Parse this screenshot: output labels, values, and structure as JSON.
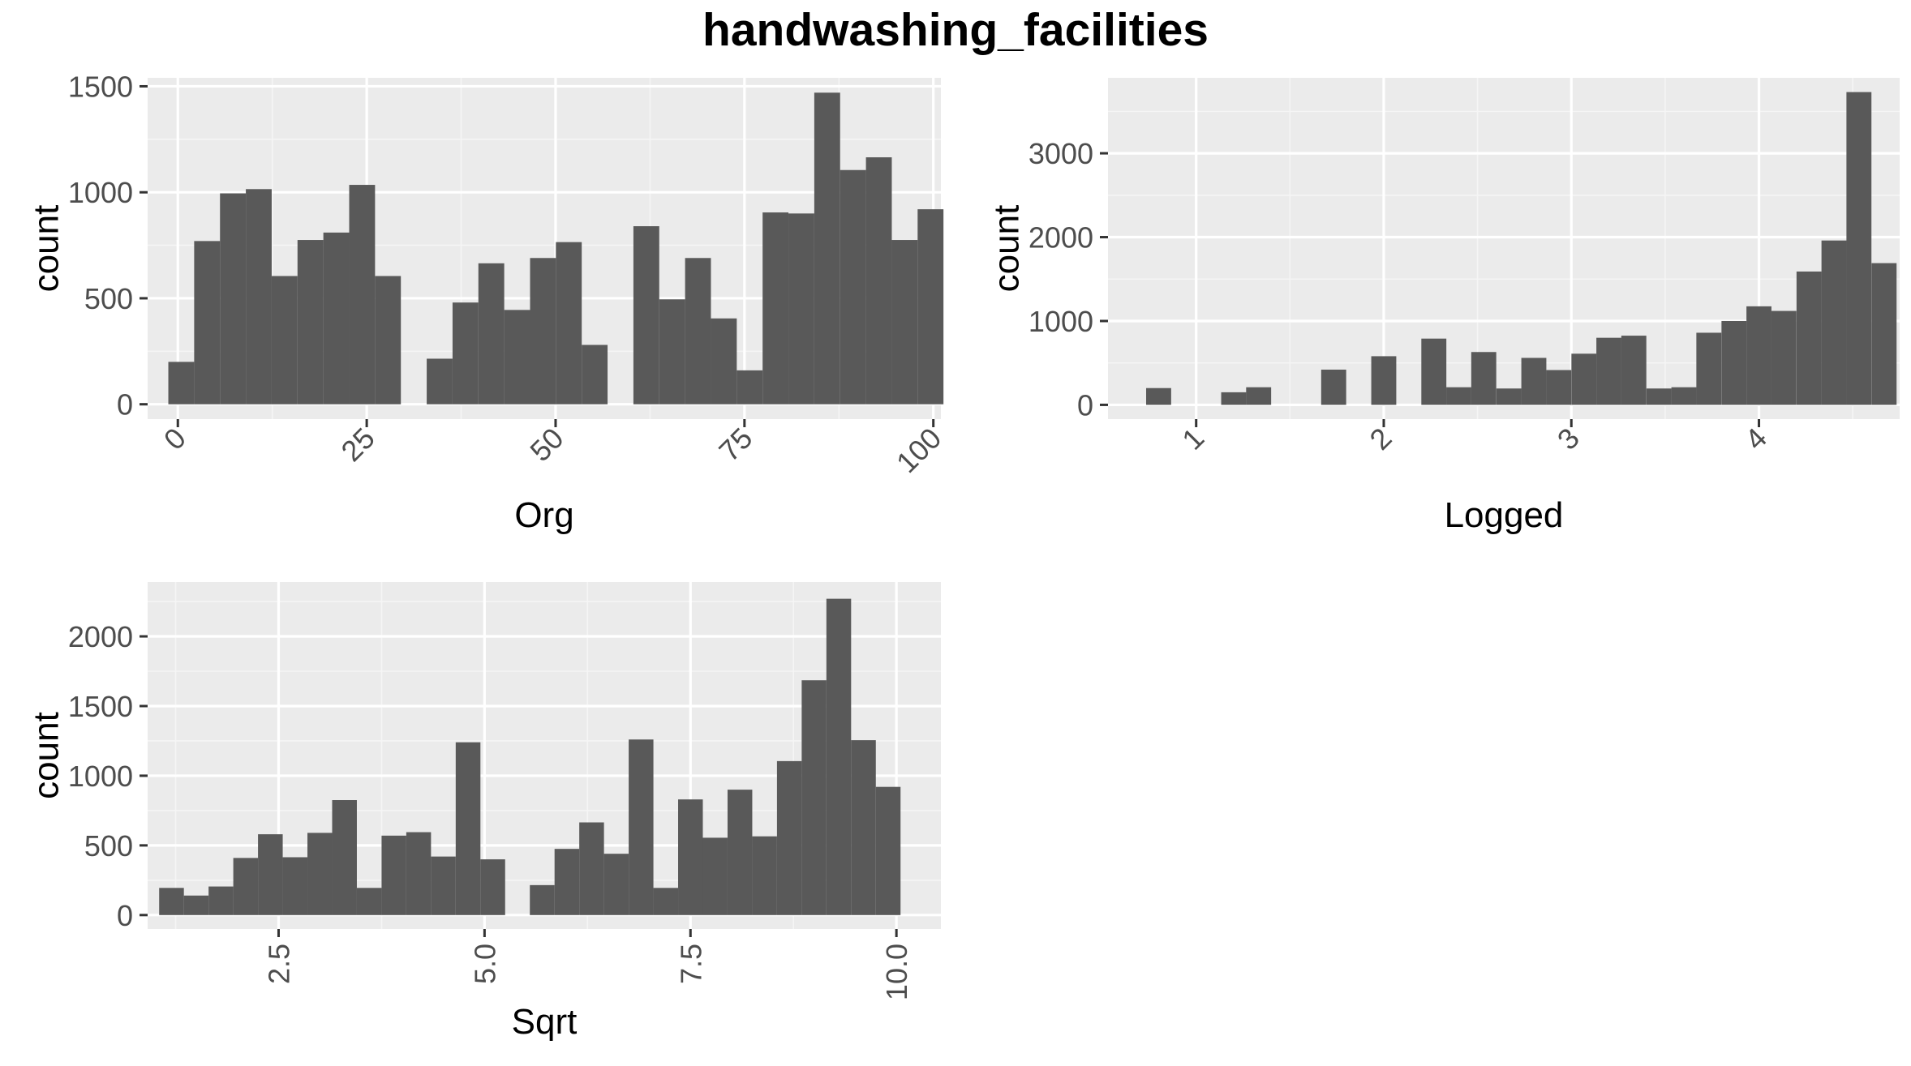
{
  "title": "handwashing_facilities",
  "colors": {
    "panel": "#ebebeb",
    "grid_major": "#ffffff",
    "grid_minor": "#f5f5f5",
    "bar": "#595959",
    "tick_text": "#4d4d4d",
    "axis_text": "#000000"
  },
  "chart_data": [
    {
      "type": "bar",
      "title": "",
      "xlabel": "Org",
      "ylabel": "count",
      "xlim": [
        -4,
        101
      ],
      "ylim": [
        -70,
        1540
      ],
      "x_ticks": [
        0,
        25,
        50,
        75,
        100
      ],
      "x_tick_labels": [
        "0",
        "25",
        "50",
        "75",
        "100"
      ],
      "x_tick_rotation": -45,
      "y_ticks": [
        0,
        500,
        1000,
        1500
      ],
      "y_tick_labels": [
        "0",
        "500",
        "1000",
        "1500"
      ],
      "grid": true,
      "bin_width": 3.42,
      "x": [
        0.45,
        3.87,
        7.29,
        10.71,
        14.13,
        17.55,
        20.97,
        24.39,
        27.81,
        31.23,
        34.65,
        38.07,
        41.49,
        44.91,
        48.33,
        51.75,
        55.17,
        58.59,
        62.01,
        65.43,
        68.85,
        72.27,
        75.69,
        79.11,
        82.53,
        85.95,
        89.37,
        92.79,
        96.21,
        99.63
      ],
      "values": [
        200,
        770,
        995,
        1015,
        605,
        775,
        810,
        1035,
        605,
        0,
        215,
        480,
        665,
        445,
        690,
        765,
        280,
        0,
        840,
        495,
        690,
        405,
        160,
        905,
        900,
        1470,
        1105,
        1165,
        775,
        920
      ]
    },
    {
      "type": "bar",
      "title": "",
      "xlabel": "Logged",
      "ylabel": "count",
      "xlim": [
        0.53,
        4.75
      ],
      "ylim": [
        -170,
        3900
      ],
      "x_ticks": [
        1,
        2,
        3,
        4
      ],
      "x_tick_labels": [
        "1",
        "2",
        "3",
        "4"
      ],
      "x_tick_rotation": -45,
      "y_ticks": [
        0,
        1000,
        2000,
        3000
      ],
      "y_tick_labels": [
        "0",
        "1000",
        "2000",
        "3000"
      ],
      "grid": true,
      "bin_width": 0.1333,
      "x": [
        0.8,
        0.933,
        1.067,
        1.2,
        1.333,
        1.467,
        1.6,
        1.733,
        1.867,
        2.0,
        2.133,
        2.267,
        2.4,
        2.533,
        2.667,
        2.8,
        2.933,
        3.067,
        3.2,
        3.333,
        3.467,
        3.6,
        3.733,
        3.867,
        4.0,
        4.133,
        4.267,
        4.4,
        4.533,
        4.667
      ],
      "values": [
        200,
        0,
        0,
        150,
        210,
        0,
        0,
        420,
        0,
        580,
        0,
        790,
        210,
        630,
        195,
        560,
        415,
        610,
        800,
        825,
        195,
        210,
        860,
        1000,
        1175,
        1120,
        1590,
        1960,
        3730,
        1690
      ]
    },
    {
      "type": "bar",
      "title": "",
      "xlabel": "Sqrt",
      "ylabel": "count",
      "xlim": [
        0.91,
        10.54
      ],
      "ylim": [
        -100,
        2390
      ],
      "x_ticks": [
        2.5,
        5.0,
        7.5,
        10.0
      ],
      "x_tick_labels": [
        "2.5",
        "5.0",
        "7.5",
        "10.0"
      ],
      "x_tick_rotation": -90,
      "y_ticks": [
        0,
        500,
        1000,
        1500,
        2000
      ],
      "y_tick_labels": [
        "0",
        "500",
        "1000",
        "1500",
        "2000"
      ],
      "grid": true,
      "bin_width": 0.3,
      "x": [
        1.2,
        1.5,
        1.8,
        2.1,
        2.4,
        2.7,
        3.0,
        3.3,
        3.6,
        3.9,
        4.2,
        4.5,
        4.8,
        5.1,
        5.4,
        5.7,
        6.0,
        6.3,
        6.6,
        6.9,
        7.2,
        7.5,
        7.8,
        8.1,
        8.4,
        8.7,
        9.0,
        9.3,
        9.6,
        9.9
      ],
      "values": [
        195,
        140,
        205,
        410,
        580,
        415,
        590,
        825,
        195,
        570,
        595,
        420,
        1240,
        400,
        0,
        215,
        475,
        665,
        440,
        1260,
        195,
        830,
        555,
        900,
        565,
        1105,
        1685,
        2270,
        1255,
        920
      ]
    }
  ]
}
